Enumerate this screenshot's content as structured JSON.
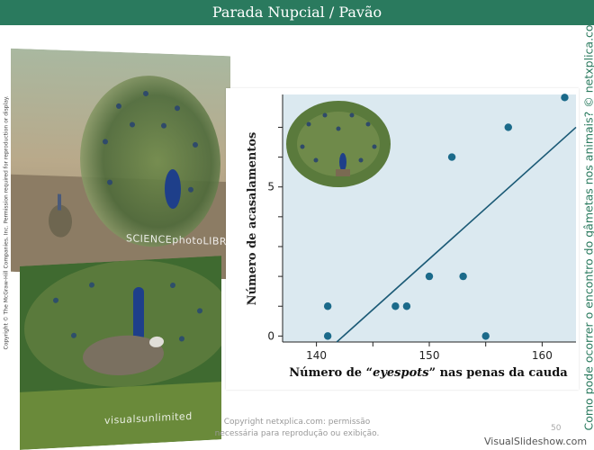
{
  "header": {
    "title": "Parada Nupcial / Pavão"
  },
  "photos": {
    "top_credit": "SCIENCEphotoLIBRARY",
    "bottom_credit": "visualsunlimited"
  },
  "left_copyright": "Copyright © The McGraw-Hill Companies, Inc. Permission required for reproduction or display.",
  "side_question": "Como pode ocorrer o encontro do gâmetas nos animais? © netxplica.com",
  "footer": {
    "line1": "Copyright netxplica.com: permissão",
    "line2": "necessária para reprodução ou exibição.",
    "page": "50",
    "brand": "VisualSlideshow.com"
  },
  "colors": {
    "title_bar": "#2a7a5e",
    "plot_bg": "#dbe9f0",
    "marker": "#1b6a8a",
    "fit_line": "#1b5a76"
  },
  "chart_data": {
    "type": "scatter",
    "xlabel_prefix": "Número de “",
    "xlabel_italic": "eyespots",
    "xlabel_suffix": "” nas penas da cauda",
    "ylabel": "Número de acasalamentos",
    "xlim": [
      137,
      163
    ],
    "ylim": [
      -0.2,
      8.1
    ],
    "xticks": [
      140,
      150,
      160
    ],
    "yticks": [
      0,
      5
    ],
    "ytick_marks": [
      0,
      1,
      2,
      3,
      4,
      5,
      6,
      7
    ],
    "xtick_marks": [
      140,
      145,
      150,
      155,
      160
    ],
    "points": [
      {
        "x": 141,
        "y": 0
      },
      {
        "x": 141,
        "y": 1
      },
      {
        "x": 147,
        "y": 1
      },
      {
        "x": 148,
        "y": 1
      },
      {
        "x": 150,
        "y": 2
      },
      {
        "x": 152,
        "y": 6
      },
      {
        "x": 153,
        "y": 2
      },
      {
        "x": 155,
        "y": 0
      },
      {
        "x": 157,
        "y": 7
      },
      {
        "x": 162,
        "y": 8
      }
    ],
    "fit_line": [
      {
        "x": 141.8,
        "y": -0.2
      },
      {
        "x": 163,
        "y": 7.0
      }
    ],
    "grid": false
  }
}
